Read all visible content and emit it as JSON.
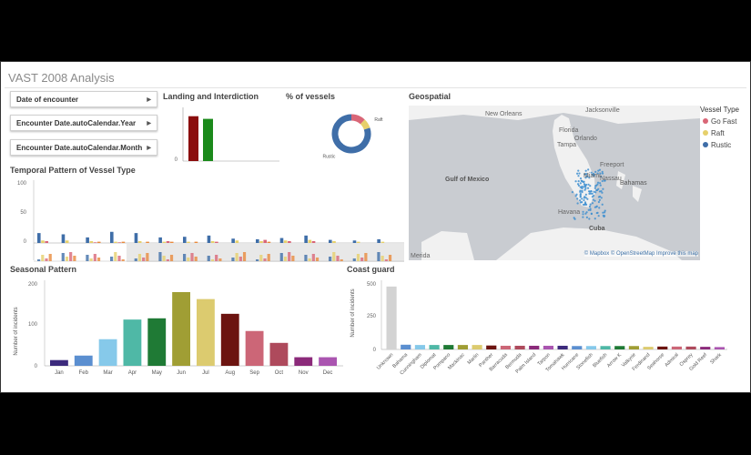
{
  "app": {
    "title": "VAST 2008 Analysis"
  },
  "filters": [
    {
      "label": "Date of encounter"
    },
    {
      "label": "Encounter Date.autoCalendar.Year"
    },
    {
      "label": "Encounter Date.autoCalendar.Month"
    }
  ],
  "landing": {
    "title": "Landing and Interdiction",
    "tick_zero": "0",
    "bars": [
      {
        "value": 0.85,
        "color": "#8b0d0d"
      },
      {
        "value": 0.8,
        "color": "#1b8a1b"
      }
    ]
  },
  "vessels": {
    "title": "% of vessels",
    "slices": [
      {
        "name": "Go Fast",
        "label": "",
        "value": 12,
        "color": "#d96677"
      },
      {
        "name": "Raft",
        "label": "Raft",
        "value": 8,
        "color": "#e6d06b"
      },
      {
        "name": "Rustic",
        "label": "Rustic",
        "value": 80,
        "color": "#3f6ea8"
      }
    ]
  },
  "geo": {
    "title": "Geospatial",
    "places": [
      "New Orleans",
      "Jacksonville",
      "Florida",
      "Tampa",
      "Orlando",
      "Miami",
      "Freeport",
      "Nassau",
      "Gulf of Mexico",
      "Bahamas",
      "Havana",
      "Cuba",
      "Merida"
    ],
    "attribution": "© Mapbox © OpenStreetMap Improve this map",
    "legend_title": "Vessel Type",
    "legend": [
      {
        "label": "Go Fast",
        "color": "#d96677"
      },
      {
        "label": "Raft",
        "color": "#e6d06b"
      },
      {
        "label": "Rustic",
        "color": "#3f6ea8"
      }
    ],
    "marker_color": "#3f8fd0"
  },
  "temporal": {
    "title": "Temporal Pattern of Vessel Type",
    "y_ticks": [
      "100",
      "50",
      "0"
    ],
    "ylim": [
      0,
      100
    ],
    "colors": {
      "rustic": "#3f6ea8",
      "raft": "#e6d06b",
      "gofast": "#d96677",
      "other": "#e98a3c"
    },
    "groups": [
      [
        16,
        4,
        3,
        0
      ],
      [
        14,
        4,
        0,
        0
      ],
      [
        9,
        3,
        1,
        2
      ],
      [
        18,
        2,
        1,
        2
      ],
      [
        16,
        3,
        0,
        2
      ],
      [
        9,
        2,
        3,
        2
      ],
      [
        10,
        2,
        0,
        2
      ],
      [
        12,
        3,
        2,
        0
      ],
      [
        7,
        4,
        0,
        0
      ],
      [
        6,
        3,
        5,
        2
      ],
      [
        8,
        4,
        3,
        0
      ],
      [
        12,
        5,
        3,
        0
      ],
      [
        5,
        3,
        0,
        0
      ],
      [
        4,
        2,
        0,
        0
      ],
      [
        6,
        2,
        0,
        0
      ]
    ]
  },
  "seasonal": {
    "title": "Seasonal Pattern",
    "ylabel": "Number of incidents",
    "y_ticks": [
      "200",
      "100",
      "0"
    ],
    "ylim": [
      0,
      200
    ],
    "categories": [
      "Jan",
      "Feb",
      "Mar",
      "Apr",
      "May",
      "Jun",
      "Jul",
      "Aug",
      "Sep",
      "Oct",
      "Nov",
      "Dec"
    ],
    "values": [
      14,
      25,
      65,
      113,
      116,
      180,
      163,
      127,
      85,
      56,
      21,
      21
    ],
    "colors": [
      "#3c2a7c",
      "#5b8fd0",
      "#86c9ea",
      "#4fb8a6",
      "#1f7a35",
      "#a09e34",
      "#dccb6f",
      "#6c1410",
      "#cc6677",
      "#ae4a5c",
      "#8b2a7a",
      "#aa55b0"
    ]
  },
  "coastguard": {
    "title": "Coast guard",
    "ylabel": "Number of incidents",
    "y_ticks": [
      "500",
      "250",
      "0"
    ],
    "ylim": [
      0,
      500
    ],
    "categories": [
      "Unknown",
      "Bahama",
      "Cunningham",
      "Diplomat",
      "Pompano",
      "Mackinac",
      "Marlin",
      "Panther",
      "Barracuda",
      "Bermuda",
      "Palm Island",
      "Tarpon",
      "Tomahawk",
      "Hurricane",
      "Stonefish",
      "Bluefish",
      "Arrow K",
      "Valkyrie",
      "Ferdinand",
      "Seahorse",
      "Admiral",
      "Osprey",
      "Gold Reef",
      "Shark"
    ],
    "values": [
      480,
      36,
      34,
      34,
      34,
      34,
      34,
      30,
      28,
      28,
      28,
      28,
      28,
      26,
      26,
      26,
      26,
      26,
      20,
      22,
      22,
      22,
      20,
      18
    ],
    "colors": [
      "#d3d3d3",
      "#5b8fd0",
      "#86c9ea",
      "#4fb8a6",
      "#1f7a35",
      "#a09e34",
      "#dccb6f",
      "#6c1410",
      "#cc6677",
      "#ae4a5c",
      "#8b2a7a",
      "#aa55b0",
      "#3c2a7c",
      "#5b8fd0",
      "#86c9ea",
      "#4fb8a6",
      "#1f7a35",
      "#a09e34",
      "#dccb6f",
      "#6c1410",
      "#cc6677",
      "#ae4a5c",
      "#8b2a7a",
      "#aa55b0"
    ]
  }
}
